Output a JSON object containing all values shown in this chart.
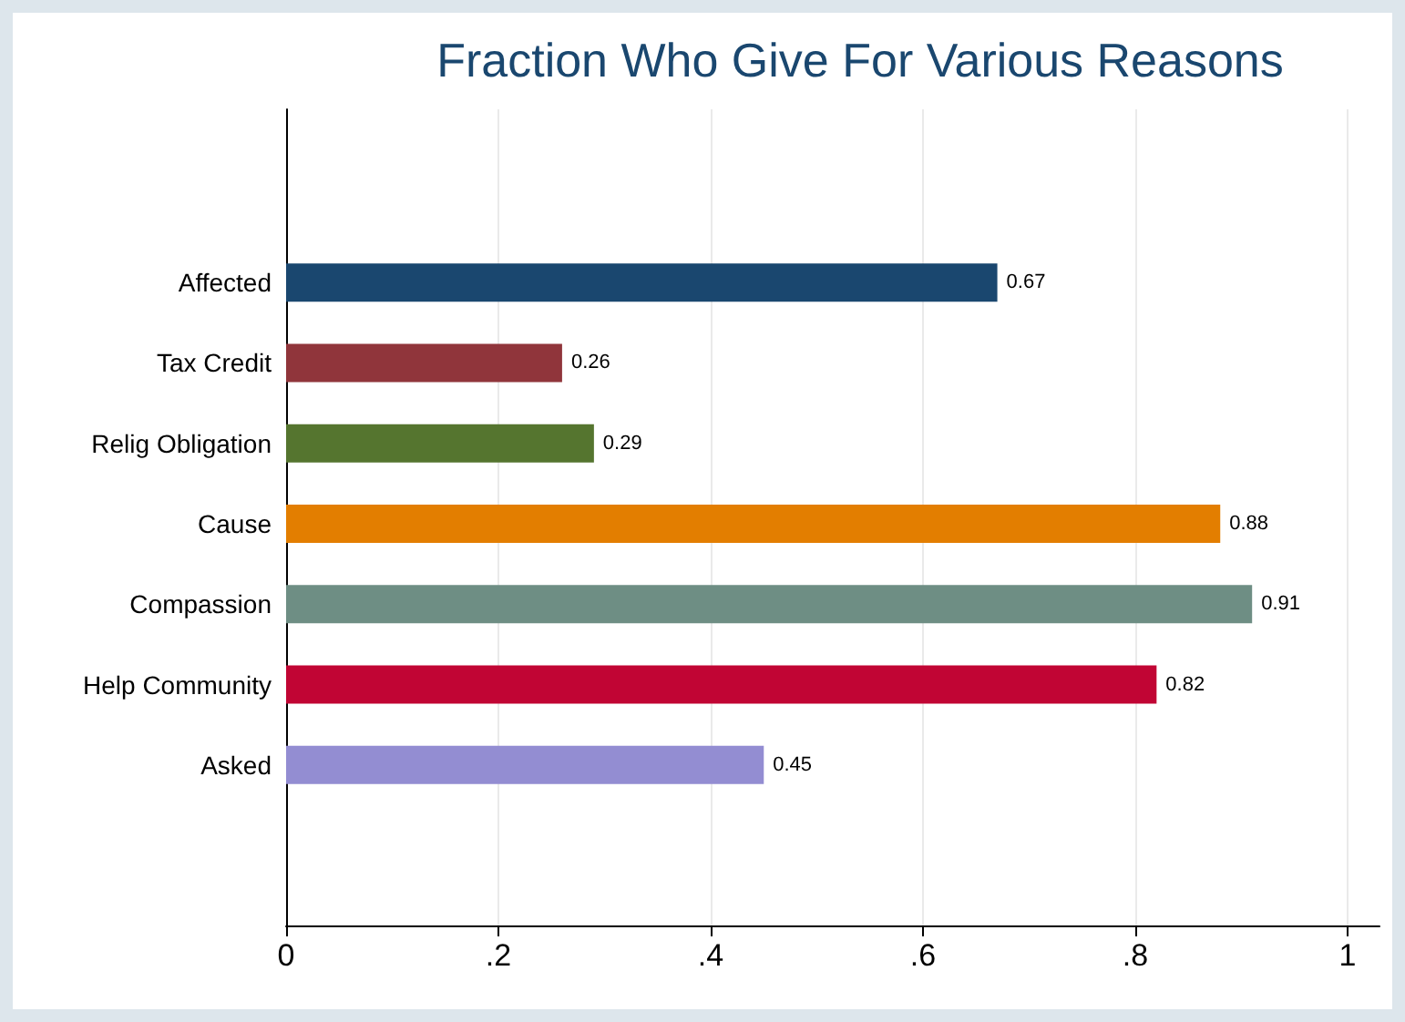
{
  "chart_data": {
    "type": "bar",
    "orientation": "horizontal",
    "title": "Fraction Who Give For Various Reasons",
    "categories": [
      "Affected",
      "Tax Credit",
      "Relig Obligation",
      "Cause",
      "Compassion",
      "Help Community",
      "Asked"
    ],
    "values": [
      0.67,
      0.26,
      0.29,
      0.88,
      0.91,
      0.82,
      0.45
    ],
    "colors": [
      "#1a476f",
      "#90353b",
      "#55752f",
      "#e37e00",
      "#6e8e84",
      "#c10534",
      "#938dd2"
    ],
    "xlim": [
      0,
      1.03
    ],
    "xticks": [
      {
        "value": 0,
        "label": "0"
      },
      {
        "value": 0.2,
        "label": ".2"
      },
      {
        "value": 0.4,
        "label": ".4"
      },
      {
        "value": 0.6,
        "label": ".6"
      },
      {
        "value": 0.8,
        "label": ".8"
      },
      {
        "value": 1,
        "label": "1"
      }
    ],
    "grid": "x",
    "data_labels": true
  }
}
